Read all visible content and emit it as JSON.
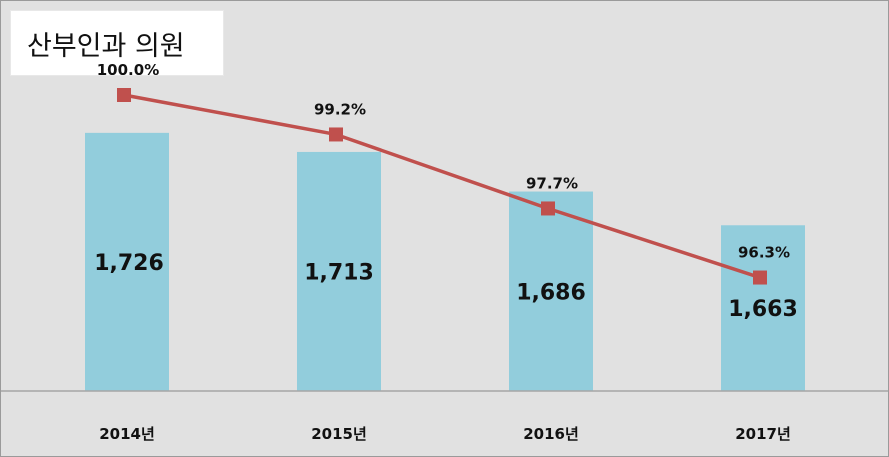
{
  "title": "산부인과 의원",
  "colors": {
    "bar": "#92cddc",
    "line": "#c0504d",
    "background": "#e1e1e1",
    "axis": "#a6a6a6"
  },
  "chart_data": [
    {
      "type": "bar",
      "categories": [
        "2014년",
        "2015년",
        "2016년",
        "2017년"
      ],
      "values": [
        1726,
        1713,
        1686,
        1663
      ],
      "labels": [
        "1,726",
        "1,713",
        "1,686",
        "1,663"
      ],
      "ylim": [
        1550,
        1730
      ]
    },
    {
      "type": "line",
      "categories": [
        "2014년",
        "2015년",
        "2016년",
        "2017년"
      ],
      "values": [
        100.0,
        99.2,
        97.7,
        96.3
      ],
      "labels": [
        "100.0%",
        "99.2%",
        "97.7%",
        "96.3%"
      ],
      "ylim": [
        94,
        101.5
      ],
      "marker": "square"
    }
  ]
}
